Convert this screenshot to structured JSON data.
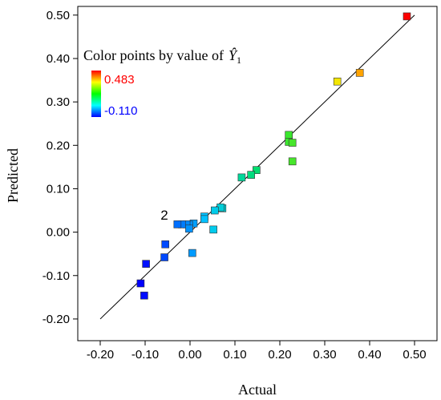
{
  "chart_data": {
    "type": "scatter",
    "xlabel": "Actual",
    "ylabel": "Predicted",
    "xlim": [
      -0.25,
      0.55
    ],
    "ylim": [
      -0.25,
      0.52
    ],
    "x_ticks": [
      -0.2,
      -0.1,
      0.0,
      0.1,
      0.2,
      0.3,
      0.4,
      0.5
    ],
    "y_ticks": [
      -0.2,
      -0.1,
      0.0,
      0.1,
      0.2,
      0.3,
      0.4,
      0.5
    ],
    "x_tick_labels": [
      "-0.20",
      "-0.10",
      "0.00",
      "0.10",
      "0.20",
      "0.30",
      "0.40",
      "0.50"
    ],
    "y_tick_labels": [
      "-0.20",
      "-0.10",
      "0.00",
      "0.10",
      "0.20",
      "0.30",
      "0.40",
      "0.50"
    ],
    "reference_line": {
      "from": [
        -0.2,
        -0.2
      ],
      "to": [
        0.5,
        0.5
      ]
    },
    "legend": {
      "title_prefix": "Color points by value of",
      "symbol": "Ŷ",
      "subscript": "1",
      "max_label": "0.483",
      "min_label": "-0.110",
      "placement": "top-left"
    },
    "color_scale": {
      "min": -0.11,
      "max": 0.483
    },
    "annotation": {
      "text": "2",
      "x": -0.03,
      "y": 0.025
    },
    "points": [
      {
        "x": 0.483,
        "y": 0.497
      },
      {
        "x": 0.378,
        "y": 0.367
      },
      {
        "x": 0.328,
        "y": 0.347
      },
      {
        "x": 0.22,
        "y": 0.224
      },
      {
        "x": 0.22,
        "y": 0.208
      },
      {
        "x": 0.228,
        "y": 0.206
      },
      {
        "x": 0.228,
        "y": 0.163
      },
      {
        "x": 0.148,
        "y": 0.143
      },
      {
        "x": 0.136,
        "y": 0.132
      },
      {
        "x": 0.115,
        "y": 0.126
      },
      {
        "x": 0.072,
        "y": 0.055
      },
      {
        "x": 0.068,
        "y": 0.057
      },
      {
        "x": 0.055,
        "y": 0.05
      },
      {
        "x": 0.052,
        "y": 0.006
      },
      {
        "x": 0.032,
        "y": 0.036
      },
      {
        "x": 0.032,
        "y": 0.03
      },
      {
        "x": 0.008,
        "y": 0.02
      },
      {
        "x": -0.002,
        "y": 0.017
      },
      {
        "x": -0.008,
        "y": 0.018
      },
      {
        "x": -0.018,
        "y": 0.018
      },
      {
        "x": -0.028,
        "y": 0.018
      },
      {
        "x": -0.002,
        "y": 0.008
      },
      {
        "x": 0.005,
        "y": -0.048
      },
      {
        "x": -0.055,
        "y": -0.028
      },
      {
        "x": -0.057,
        "y": -0.058
      },
      {
        "x": -0.098,
        "y": -0.073
      },
      {
        "x": -0.11,
        "y": -0.118
      },
      {
        "x": -0.102,
        "y": -0.146
      }
    ]
  }
}
